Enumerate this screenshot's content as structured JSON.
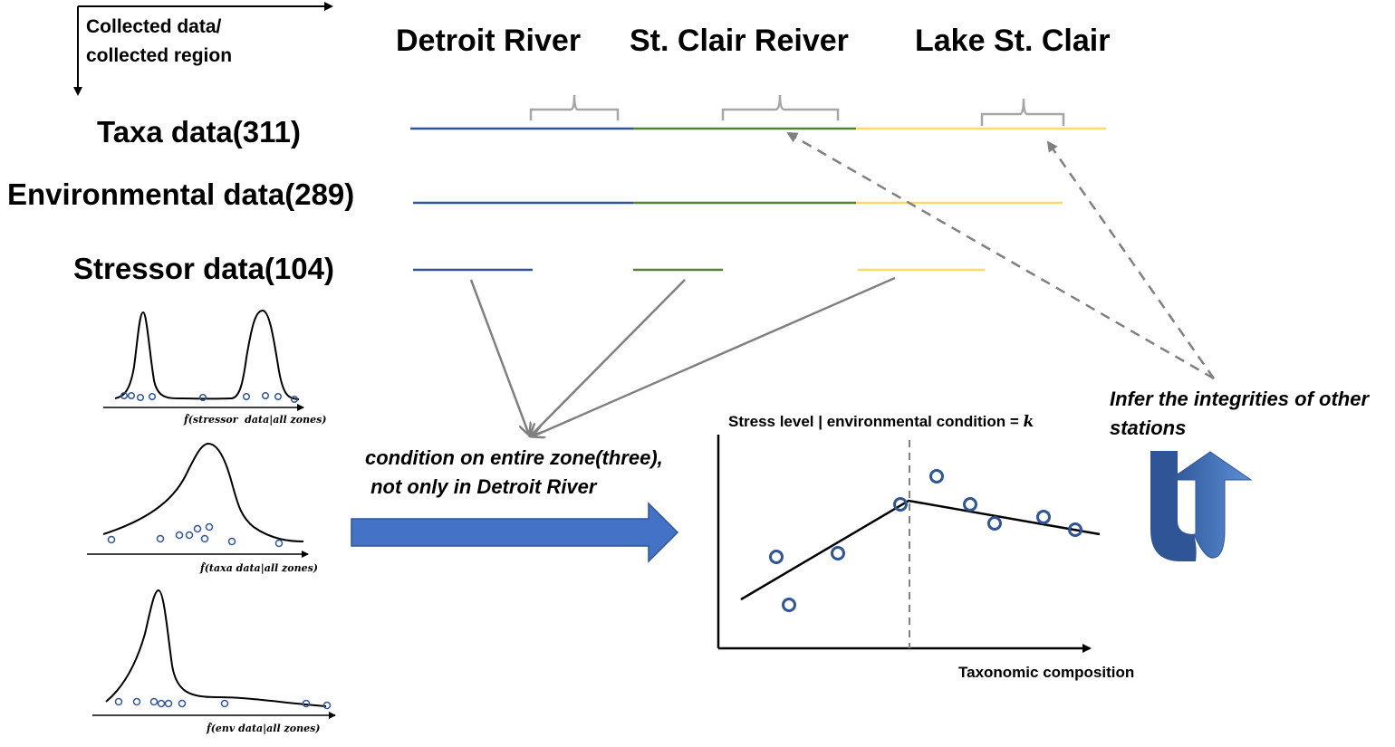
{
  "axis_caption": {
    "line1": "Collected data/",
    "line2": "collected region"
  },
  "regions": [
    "Detroit River",
    "St. Clair Reiver",
    "Lake St. Clair"
  ],
  "rows": [
    "Taxa data(311)",
    "Environmental data(289)",
    "Stressor data(104)"
  ],
  "condition_note": {
    "line1": "condition on entire zone(three),",
    "line2": " not only in Detroit River"
  },
  "infer_note": {
    "line1": "Infer the integrities of other",
    "line2": "stations"
  },
  "scatter_plot": {
    "y_label": "Stress level | environmental condition = ",
    "y_label_var": "k",
    "x_label": "Taxonomic composition"
  },
  "density_plots": [
    {
      "label": "f̂(stressor  data|all zones)"
    },
    {
      "label": "f̂(taxa data|all zones)"
    },
    {
      "label": "f̂(env data|all zones)"
    }
  ],
  "colors": {
    "detroit": "#2F5597",
    "stclair_river": "#548235",
    "lake": "#FFD966",
    "gray": "#808080",
    "arrow_blue": "#4472C4"
  }
}
